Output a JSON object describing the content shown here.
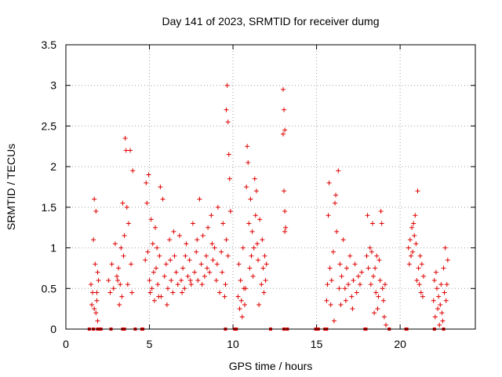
{
  "chart_data": {
    "type": "scatter",
    "title": "Day 141 of 2023, SRMTID for receiver dumg",
    "xlabel": "GPS time / hours",
    "ylabel": "SRMTID / TECUs",
    "xlim": [
      0,
      24.5
    ],
    "ylim": [
      0,
      3.5
    ],
    "xticks": [
      0,
      5,
      10,
      15,
      20
    ],
    "xtick_labels": [
      "0",
      "5",
      "10",
      "15",
      "20"
    ],
    "yticks": [
      0,
      0.5,
      1,
      1.5,
      2,
      2.5,
      3,
      3.5
    ],
    "ytick_labels": [
      "0",
      "0.5",
      "1",
      "1.5",
      "2",
      "2.5",
      "3",
      "3.5"
    ],
    "grid": true,
    "marker": "+",
    "color": "#e00000",
    "series": [
      {
        "name": "SRMTID",
        "points": [
          [
            1.5,
            0.55
          ],
          [
            1.55,
            0.3
          ],
          [
            1.6,
            0.45
          ],
          [
            1.65,
            1.1
          ],
          [
            1.7,
            1.6
          ],
          [
            1.75,
            0.8
          ],
          [
            1.8,
            0.2
          ],
          [
            1.85,
            0.35
          ],
          [
            1.9,
            0.1
          ],
          [
            1.95,
            0.6
          ],
          [
            1.7,
            0.25
          ],
          [
            1.8,
            1.45
          ],
          [
            1.85,
            0.45
          ],
          [
            1.9,
            0.7
          ],
          [
            2.55,
            0.6
          ],
          [
            2.65,
            0.45
          ],
          [
            2.75,
            0.8
          ],
          [
            2.85,
            0.5
          ],
          [
            2.95,
            1.05
          ],
          [
            3.05,
            0.65
          ],
          [
            3.15,
            0.75
          ],
          [
            3.25,
            0.55
          ],
          [
            3.35,
            0.4
          ],
          [
            3.45,
            0.9
          ],
          [
            3.55,
            2.35
          ],
          [
            3.6,
            2.2
          ],
          [
            3.65,
            1.5
          ],
          [
            3.7,
            0.55
          ],
          [
            3.75,
            1.3
          ],
          [
            3.85,
            2.2
          ],
          [
            3.9,
            0.8
          ],
          [
            3.95,
            0.45
          ],
          [
            4.0,
            1.95
          ],
          [
            3.4,
            1.55
          ],
          [
            3.5,
            1.15
          ],
          [
            3.3,
            1.0
          ],
          [
            3.2,
            0.3
          ],
          [
            3.1,
            0.6
          ],
          [
            4.75,
            0.85
          ],
          [
            4.8,
            1.8
          ],
          [
            4.85,
            1.55
          ],
          [
            4.9,
            0.95
          ],
          [
            4.95,
            1.9
          ],
          [
            5.0,
            0.6
          ],
          [
            5.05,
            0.45
          ],
          [
            5.1,
            1.35
          ],
          [
            5.15,
            0.5
          ],
          [
            5.2,
            1.05
          ],
          [
            5.25,
            0.7
          ],
          [
            5.3,
            0.35
          ],
          [
            5.35,
            1.25
          ],
          [
            5.4,
            0.75
          ],
          [
            5.5,
            0.55
          ],
          [
            5.6,
            0.9
          ],
          [
            5.7,
            0.4
          ],
          [
            5.8,
            1.6
          ],
          [
            5.9,
            0.65
          ],
          [
            6.0,
            0.8
          ],
          [
            6.1,
            0.5
          ],
          [
            6.2,
            1.1
          ],
          [
            6.3,
            0.6
          ],
          [
            6.4,
            0.45
          ],
          [
            6.5,
            0.9
          ],
          [
            6.6,
            0.7
          ],
          [
            6.7,
            0.55
          ],
          [
            6.8,
            1.15
          ],
          [
            6.9,
            0.6
          ],
          [
            7.0,
            0.75
          ],
          [
            7.1,
            0.5
          ],
          [
            7.2,
            1.05
          ],
          [
            7.3,
            0.65
          ],
          [
            7.4,
            0.85
          ],
          [
            7.5,
            0.55
          ],
          [
            7.6,
            1.3
          ],
          [
            7.7,
            0.7
          ],
          [
            7.8,
            0.95
          ],
          [
            7.9,
            0.6
          ],
          [
            8.0,
            1.6
          ],
          [
            8.1,
            0.8
          ],
          [
            8.2,
            1.15
          ],
          [
            8.3,
            0.65
          ],
          [
            8.4,
            0.9
          ],
          [
            8.5,
            1.25
          ],
          [
            8.6,
            0.7
          ],
          [
            8.7,
            1.4
          ],
          [
            8.8,
            0.85
          ],
          [
            8.9,
            1.0
          ],
          [
            9.0,
            0.6
          ],
          [
            9.1,
            1.5
          ],
          [
            9.2,
            0.45
          ],
          [
            9.3,
            0.95
          ],
          [
            9.4,
            1.3
          ],
          [
            9.5,
            0.4
          ],
          [
            9.6,
            2.7
          ],
          [
            9.65,
            3.0
          ],
          [
            9.7,
            2.55
          ],
          [
            9.75,
            2.15
          ],
          [
            9.8,
            1.85
          ],
          [
            9.85,
            1.45
          ],
          [
            9.7,
            0.9
          ],
          [
            9.6,
            1.1
          ],
          [
            9.55,
            0.55
          ],
          [
            5.45,
            1.0
          ],
          [
            5.55,
            0.4
          ],
          [
            5.65,
            1.75
          ],
          [
            6.05,
            0.3
          ],
          [
            6.25,
            0.85
          ],
          [
            6.45,
            1.2
          ],
          [
            6.95,
            0.45
          ],
          [
            7.15,
            0.9
          ],
          [
            7.45,
            0.6
          ],
          [
            7.85,
            1.1
          ],
          [
            8.15,
            0.55
          ],
          [
            8.45,
            0.75
          ],
          [
            8.75,
            1.05
          ],
          [
            9.05,
            0.8
          ],
          [
            9.35,
            0.7
          ],
          [
            10.3,
            0.4
          ],
          [
            10.35,
            0.8
          ],
          [
            10.4,
            0.25
          ],
          [
            10.45,
            0.6
          ],
          [
            10.5,
            0.35
          ],
          [
            10.6,
            1.0
          ],
          [
            10.65,
            0.5
          ],
          [
            10.7,
            0.3
          ],
          [
            10.8,
            1.75
          ],
          [
            10.85,
            2.25
          ],
          [
            10.9,
            2.05
          ],
          [
            10.95,
            1.3
          ],
          [
            11.0,
            0.75
          ],
          [
            11.05,
            1.6
          ],
          [
            11.1,
            0.9
          ],
          [
            11.15,
            1.2
          ],
          [
            11.2,
            0.65
          ],
          [
            11.3,
            1.85
          ],
          [
            11.35,
            1.4
          ],
          [
            11.4,
            1.7
          ],
          [
            11.45,
            1.05
          ],
          [
            11.5,
            0.85
          ],
          [
            11.6,
            1.35
          ],
          [
            11.7,
            0.55
          ],
          [
            11.8,
            0.75
          ],
          [
            11.85,
            0.45
          ],
          [
            11.9,
            0.9
          ],
          [
            11.95,
            0.6
          ],
          [
            12.0,
            0.8
          ],
          [
            10.55,
            0.15
          ],
          [
            10.75,
            0.5
          ],
          [
            11.25,
            1.0
          ],
          [
            11.55,
            0.3
          ],
          [
            11.75,
            1.1
          ],
          [
            13.0,
            2.95
          ],
          [
            13.05,
            2.7
          ],
          [
            13.1,
            2.45
          ],
          [
            13.0,
            2.4
          ],
          [
            13.05,
            1.7
          ],
          [
            13.1,
            1.45
          ],
          [
            13.15,
            1.25
          ],
          [
            13.1,
            1.2
          ],
          [
            15.6,
            0.35
          ],
          [
            15.65,
            0.55
          ],
          [
            15.7,
            1.4
          ],
          [
            15.75,
            1.8
          ],
          [
            15.8,
            0.75
          ],
          [
            15.85,
            0.3
          ],
          [
            15.9,
            0.6
          ],
          [
            16.0,
            0.95
          ],
          [
            16.1,
            1.55
          ],
          [
            16.15,
            1.65
          ],
          [
            16.2,
            1.2
          ],
          [
            16.3,
            1.95
          ],
          [
            16.35,
            0.5
          ],
          [
            16.4,
            0.8
          ],
          [
            16.5,
            0.65
          ],
          [
            16.6,
            1.1
          ],
          [
            16.7,
            0.5
          ],
          [
            16.8,
            0.75
          ],
          [
            16.9,
            0.55
          ],
          [
            17.0,
            0.9
          ],
          [
            17.1,
            0.4
          ],
          [
            17.2,
            0.6
          ],
          [
            17.3,
            0.8
          ],
          [
            17.4,
            0.45
          ],
          [
            17.5,
            0.65
          ],
          [
            17.6,
            0.55
          ],
          [
            17.7,
            0.7
          ],
          [
            16.05,
            0.1
          ],
          [
            16.45,
            0.3
          ],
          [
            16.75,
            0.35
          ],
          [
            17.15,
            0.25
          ],
          [
            18.0,
            0.9
          ],
          [
            18.05,
            1.4
          ],
          [
            18.1,
            0.75
          ],
          [
            18.2,
            1.0
          ],
          [
            18.25,
            0.55
          ],
          [
            18.3,
            0.95
          ],
          [
            18.35,
            1.3
          ],
          [
            18.4,
            0.65
          ],
          [
            18.5,
            0.75
          ],
          [
            18.55,
            0.45
          ],
          [
            18.6,
            0.9
          ],
          [
            18.7,
            0.4
          ],
          [
            18.75,
            0.85
          ],
          [
            18.8,
            0.6
          ],
          [
            18.85,
            1.45
          ],
          [
            18.9,
            1.3
          ],
          [
            18.95,
            0.5
          ],
          [
            19.0,
            0.35
          ],
          [
            19.05,
            0.15
          ],
          [
            19.1,
            0.55
          ],
          [
            18.65,
            0.25
          ],
          [
            18.45,
            0.2
          ],
          [
            19.15,
            0.05
          ],
          [
            20.5,
            1.0
          ],
          [
            20.55,
            0.8
          ],
          [
            20.6,
            1.1
          ],
          [
            20.65,
            0.9
          ],
          [
            20.7,
            1.25
          ],
          [
            20.75,
            0.95
          ],
          [
            20.8,
            1.3
          ],
          [
            20.85,
            1.15
          ],
          [
            20.9,
            1.4
          ],
          [
            20.95,
            1.05
          ],
          [
            21.0,
            0.6
          ],
          [
            21.05,
            1.7
          ],
          [
            21.1,
            0.75
          ],
          [
            21.15,
            0.55
          ],
          [
            21.2,
            0.9
          ],
          [
            21.25,
            0.45
          ],
          [
            21.3,
            0.8
          ],
          [
            21.35,
            0.4
          ],
          [
            21.4,
            0.65
          ],
          [
            22.0,
            0.35
          ],
          [
            22.05,
            0.6
          ],
          [
            22.1,
            0.15
          ],
          [
            22.2,
            0.5
          ],
          [
            22.25,
            0.25
          ],
          [
            22.3,
            0.4
          ],
          [
            22.35,
            0.05
          ],
          [
            22.4,
            0.3
          ],
          [
            22.45,
            0.55
          ],
          [
            22.5,
            0.2
          ],
          [
            22.6,
            0.75
          ],
          [
            22.65,
            0.45
          ],
          [
            22.7,
            1.0
          ],
          [
            22.75,
            0.35
          ],
          [
            22.8,
            0.55
          ],
          [
            22.85,
            0.85
          ],
          [
            22.15,
            0.7
          ],
          [
            22.55,
            0.1
          ]
        ]
      }
    ],
    "zero_markers": [
      1.4,
      1.65,
      1.9,
      2.05,
      2.1,
      2.7,
      3.4,
      3.5,
      4.15,
      4.55,
      4.6,
      9.55,
      10.1,
      10.15,
      10.2,
      12.25,
      13.05,
      13.25,
      14.95,
      15.1,
      15.5,
      15.55,
      15.6,
      17.9,
      17.95,
      19.35,
      20.35,
      20.4,
      22.05,
      22.6
    ]
  }
}
